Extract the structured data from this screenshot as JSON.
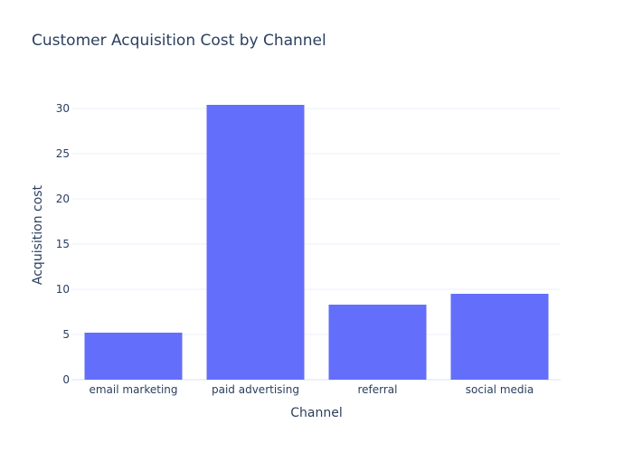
{
  "chart_data": {
    "type": "bar",
    "title": "Customer Acquisition Cost by Channel",
    "xlabel": "Channel",
    "ylabel": "Acquisition cost",
    "categories": [
      "email marketing",
      "paid advertising",
      "referral",
      "social media"
    ],
    "values": [
      5.2,
      30.4,
      8.3,
      9.5
    ],
    "ylim": [
      0,
      32
    ],
    "yticks": [
      0,
      5,
      10,
      15,
      20,
      25,
      30
    ],
    "grid": true,
    "legend": "none",
    "colors": {
      "bar": "#636efa",
      "text": "#2a3f5f",
      "grid": "#ebf0f8",
      "background": "#ffffff"
    }
  }
}
